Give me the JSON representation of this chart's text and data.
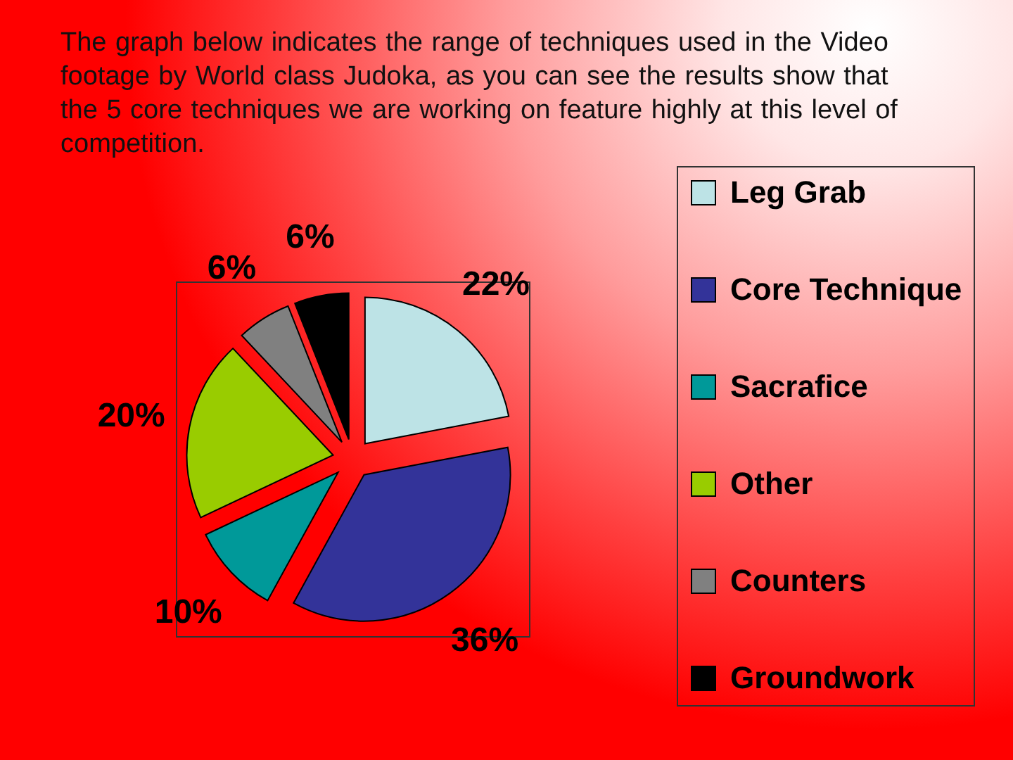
{
  "chart_data": {
    "type": "pie",
    "title": "The graph below indicates the range of techniques used in the Video footage by World class Judoka, as you can see the results show that the 5 core techniques we are working on feature highly at this level of competition.",
    "categories": [
      "Leg Grab",
      "Core Technique",
      "Sacrafice",
      "Other",
      "Counters",
      "Groundwork"
    ],
    "values": [
      22,
      36,
      10,
      20,
      6,
      6
    ],
    "colors": [
      "#bde3e6",
      "#333399",
      "#009999",
      "#99cc00",
      "#808080",
      "#000000"
    ],
    "value_labels": [
      "22%",
      "36%",
      "10%",
      "20%",
      "6%",
      "6%"
    ],
    "legend": "right"
  }
}
